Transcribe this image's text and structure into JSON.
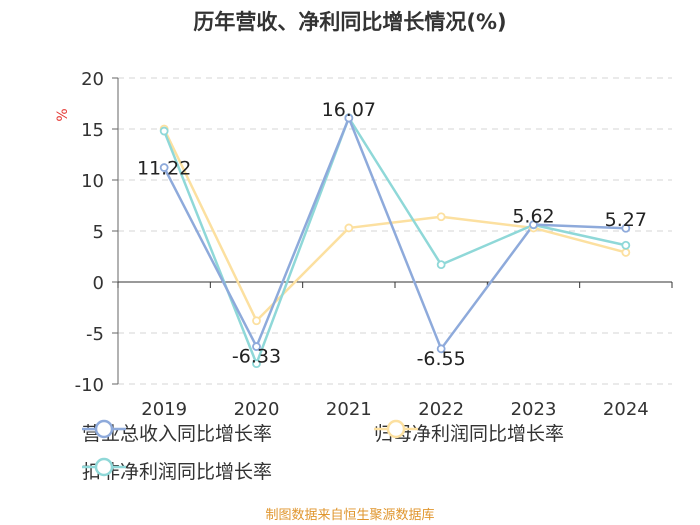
{
  "chart_data": {
    "type": "line",
    "title": "历年营收、净利同比增长情况(%)",
    "ylabel": "%",
    "xlabel": "",
    "categories": [
      "2019",
      "2020",
      "2021",
      "2022",
      "2023",
      "2024"
    ],
    "ylim": [
      -10,
      20
    ],
    "yticks": [
      20,
      15,
      10,
      5,
      0,
      -5,
      -10
    ],
    "grid": true,
    "legend_position": "bottom",
    "series": [
      {
        "name": "营业总收入同比增长率",
        "color": "#8eaadb",
        "values": [
          11.22,
          -6.33,
          16.07,
          -6.55,
          5.62,
          5.27
        ],
        "labels": [
          "11.22",
          "-6.33",
          "16.07",
          "-6.55",
          "5.62",
          "5.27"
        ]
      },
      {
        "name": "归母净利润同比增长率",
        "color": "#fce0a0",
        "values": [
          15.0,
          -3.8,
          5.3,
          6.4,
          5.3,
          2.9
        ]
      },
      {
        "name": "扣非净利润同比增长率",
        "color": "#8fd8d8",
        "values": [
          14.8,
          -8.0,
          16.1,
          1.7,
          5.6,
          3.6
        ]
      }
    ]
  },
  "footer": "制图数据来自恒生聚源数据库"
}
